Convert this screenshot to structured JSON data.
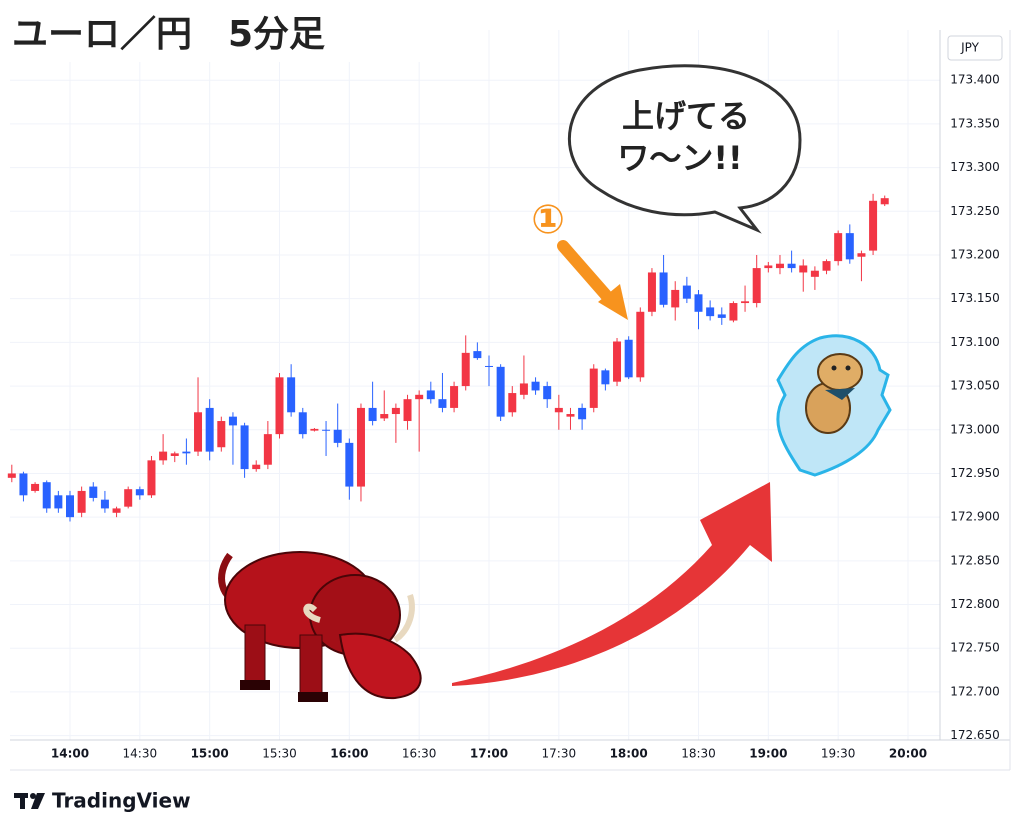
{
  "chart_data": {
    "type": "candlestick",
    "title": "ユーロ／円　5分足",
    "currency": "JPY",
    "up_color": "#f23645",
    "down_color": "#2962ff",
    "grid": true,
    "x": [
      "13:35",
      "13:40",
      "13:45",
      "13:50",
      "13:55",
      "14:00",
      "14:05",
      "14:10",
      "14:15",
      "14:20",
      "14:25",
      "14:30",
      "14:35",
      "14:40",
      "14:45",
      "14:50",
      "14:55",
      "15:00",
      "15:05",
      "15:10",
      "15:15",
      "15:20",
      "15:25",
      "15:30",
      "15:35",
      "15:40",
      "15:45",
      "15:50",
      "15:55",
      "16:00",
      "16:05",
      "16:10",
      "16:15",
      "16:20",
      "16:25",
      "16:30",
      "16:35",
      "16:40",
      "16:45",
      "16:50",
      "16:55",
      "17:00",
      "17:05",
      "17:10",
      "17:15",
      "17:20",
      "17:25",
      "17:30",
      "17:35",
      "17:40",
      "17:45",
      "17:50",
      "17:55",
      "18:00",
      "18:05",
      "18:10",
      "18:15",
      "18:20",
      "18:25",
      "18:30",
      "18:35",
      "18:40",
      "18:45",
      "18:50",
      "18:55",
      "19:00",
      "19:05",
      "19:10",
      "19:15",
      "19:20",
      "19:25",
      "19:30",
      "19:35",
      "19:40",
      "19:45",
      "19:50"
    ],
    "open": [
      172.945,
      172.95,
      172.93,
      172.94,
      172.925,
      172.925,
      172.905,
      172.935,
      172.92,
      172.905,
      172.912,
      172.932,
      172.925,
      172.965,
      172.97,
      172.975,
      172.975,
      173.025,
      172.98,
      173.015,
      173.005,
      172.955,
      172.96,
      172.995,
      173.06,
      173.02,
      172.999,
      173.0,
      173.0,
      172.985,
      172.935,
      173.025,
      173.013,
      173.018,
      173.01,
      173.035,
      173.045,
      173.035,
      173.025,
      173.05,
      173.09,
      173.073,
      173.072,
      173.02,
      173.04,
      173.055,
      173.05,
      173.02,
      173.015,
      173.025,
      173.025,
      173.068,
      173.055,
      173.103,
      173.06,
      173.135,
      173.18,
      173.14,
      173.165,
      173.155,
      173.14,
      173.132,
      173.125,
      173.145,
      173.145,
      173.185,
      173.185,
      173.19,
      173.18,
      173.175,
      173.182,
      173.193,
      173.225,
      173.198,
      173.205,
      173.258
    ],
    "high": [
      172.96,
      172.952,
      172.94,
      172.942,
      172.93,
      172.93,
      172.935,
      172.94,
      172.93,
      172.912,
      172.935,
      172.935,
      172.97,
      172.995,
      172.975,
      172.99,
      173.06,
      173.035,
      173.015,
      173.02,
      173.008,
      172.965,
      173.01,
      173.065,
      173.075,
      173.025,
      173.002,
      173.01,
      173.03,
      172.99,
      173.03,
      173.055,
      173.045,
      173.03,
      173.04,
      173.045,
      173.055,
      173.065,
      173.055,
      173.108,
      173.1,
      173.085,
      173.075,
      173.05,
      173.085,
      173.06,
      173.055,
      173.04,
      173.025,
      173.03,
      173.075,
      173.07,
      173.105,
      173.107,
      173.14,
      173.185,
      173.2,
      173.17,
      173.175,
      173.16,
      173.148,
      173.14,
      173.147,
      173.165,
      173.2,
      173.192,
      173.2,
      173.205,
      173.195,
      173.187,
      173.195,
      173.228,
      173.235,
      173.205,
      173.27,
      173.268
    ],
    "low": [
      172.94,
      172.918,
      172.928,
      172.905,
      172.905,
      172.895,
      172.9,
      172.918,
      172.905,
      172.9,
      172.91,
      172.92,
      172.922,
      172.96,
      172.963,
      172.96,
      172.97,
      172.965,
      172.975,
      172.96,
      172.945,
      172.952,
      172.955,
      172.99,
      173.015,
      172.99,
      172.998,
      172.97,
      172.98,
      172.92,
      172.918,
      173.005,
      173.01,
      172.985,
      173.0,
      172.975,
      173.03,
      173.02,
      173.02,
      173.045,
      173.08,
      173.05,
      173.01,
      173.015,
      173.035,
      173.04,
      173.025,
      173.0,
      173.0,
      173.0,
      173.02,
      173.045,
      173.05,
      173.058,
      173.055,
      173.13,
      173.14,
      173.125,
      173.145,
      173.115,
      173.125,
      173.12,
      173.123,
      173.135,
      173.14,
      173.18,
      173.178,
      173.18,
      173.158,
      173.16,
      173.178,
      173.188,
      173.19,
      173.17,
      173.2,
      173.256
    ],
    "close": [
      172.95,
      172.925,
      172.938,
      172.91,
      172.91,
      172.9,
      172.93,
      172.922,
      172.91,
      172.91,
      172.932,
      172.925,
      172.965,
      172.975,
      172.973,
      172.973,
      173.02,
      172.975,
      173.01,
      173.005,
      172.955,
      172.96,
      172.995,
      173.06,
      173.02,
      172.995,
      173.001,
      172.999,
      172.985,
      172.935,
      173.025,
      173.01,
      173.018,
      173.025,
      173.035,
      173.04,
      173.035,
      173.025,
      173.05,
      173.088,
      173.082,
      173.072,
      173.015,
      173.042,
      173.053,
      173.045,
      173.035,
      173.025,
      173.018,
      173.012,
      173.07,
      173.052,
      173.101,
      173.06,
      173.135,
      173.18,
      173.143,
      173.16,
      173.15,
      173.135,
      173.13,
      173.128,
      173.145,
      173.147,
      173.185,
      173.188,
      173.19,
      173.185,
      173.188,
      173.182,
      173.193,
      173.225,
      173.195,
      173.202,
      173.262,
      173.265
    ],
    "ylim": [
      172.645,
      173.446
    ],
    "yticks": [
      {
        "value": 172.65,
        "label": "172.650"
      },
      {
        "value": 172.7,
        "label": "172.700"
      },
      {
        "value": 172.75,
        "label": "172.750"
      },
      {
        "value": 172.8,
        "label": "172.800"
      },
      {
        "value": 172.85,
        "label": "172.850"
      },
      {
        "value": 172.9,
        "label": "172.900"
      },
      {
        "value": 172.95,
        "label": "172.950"
      },
      {
        "value": 173.0,
        "label": "173.000"
      },
      {
        "value": 173.05,
        "label": "173.050"
      },
      {
        "value": 173.1,
        "label": "173.100"
      },
      {
        "value": 173.15,
        "label": "173.150"
      },
      {
        "value": 173.2,
        "label": "173.200"
      },
      {
        "value": 173.25,
        "label": "173.250"
      },
      {
        "value": 173.3,
        "label": "173.300"
      },
      {
        "value": 173.35,
        "label": "173.350"
      },
      {
        "value": 173.4,
        "label": "173.400"
      }
    ],
    "xticks": [
      "14:00",
      "14:30",
      "15:00",
      "15:30",
      "16:00",
      "16:30",
      "17:00",
      "17:30",
      "18:00",
      "18:30",
      "19:00",
      "19:30",
      "20:00"
    ],
    "annotations": {
      "marker": "①",
      "bubble": [
        "上げてる",
        "ワ～ン!!"
      ]
    },
    "brand": "TradingView"
  }
}
